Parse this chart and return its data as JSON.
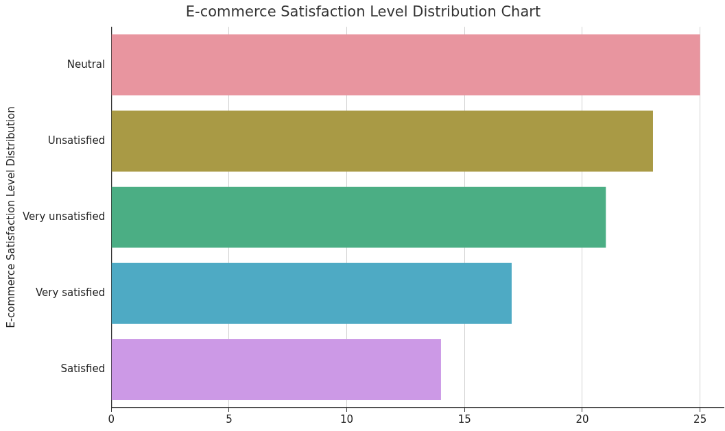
{
  "chart_data": {
    "type": "bar",
    "orientation": "horizontal",
    "title": "E-commerce Satisfaction Level Distribution Chart",
    "ylabel": "E-commerce Satisfaction Level Distribution",
    "categories": [
      "Neutral",
      "Unsatisfied",
      "Very unsatisfied",
      "Very satisfied",
      "Satisfied"
    ],
    "values": [
      25,
      23,
      21,
      17,
      14
    ],
    "colors": [
      "#e8959f",
      "#a99a45",
      "#4bae84",
      "#4eaac4",
      "#cc99e6"
    ],
    "xlim": [
      0,
      26
    ],
    "xticks": [
      0,
      5,
      10,
      15,
      20,
      25
    ],
    "grid": "x",
    "legend": false
  }
}
